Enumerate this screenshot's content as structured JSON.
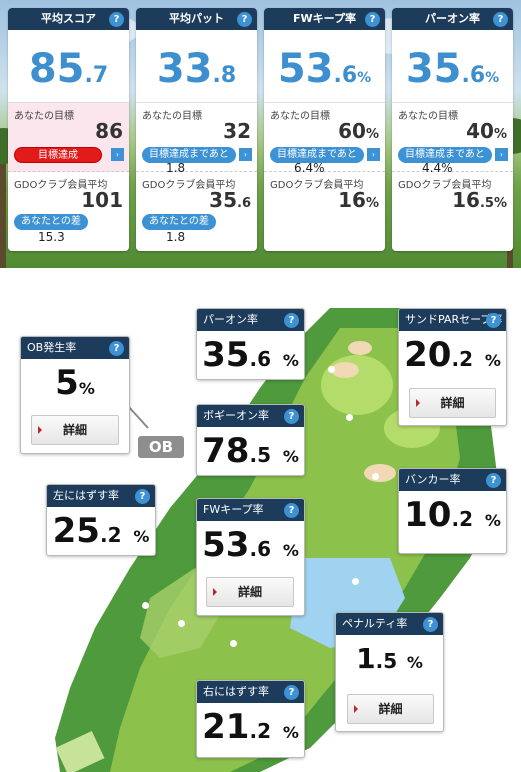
{
  "summary": [
    {
      "title": "平均スコア",
      "value_int": "85",
      "value_dec": ".7",
      "unit": "",
      "goal_label": "あなたの目標",
      "goal_int": "86",
      "goal_dec": "",
      "goal_unit": "",
      "status": "目標達成",
      "remain": "",
      "avg_label": "GDOクラブ会員平均",
      "avg_int": "101",
      "avg_dec": "",
      "avg_unit": "",
      "diff_label": "あなたとの差",
      "diff": "15.3"
    },
    {
      "title": "平均パット",
      "value_int": "33",
      "value_dec": ".8",
      "unit": "",
      "goal_label": "あなたの目標",
      "goal_int": "32",
      "goal_dec": "",
      "goal_unit": "",
      "status": "目標達成まであと",
      "remain": "1.8",
      "avg_label": "GDOクラブ会員平均",
      "avg_int": "35",
      "avg_dec": ".6",
      "avg_unit": "",
      "diff_label": "あなたとの差",
      "diff": "1.8"
    },
    {
      "title": "FWキープ率",
      "value_int": "53",
      "value_dec": ".6",
      "unit": "%",
      "goal_label": "あなたの目標",
      "goal_int": "60",
      "goal_dec": "",
      "goal_unit": "%",
      "status": "目標達成まであと",
      "remain": "6.4%",
      "avg_label": "GDOクラブ会員平均",
      "avg_int": "16",
      "avg_dec": "",
      "avg_unit": "%",
      "diff_label": "",
      "diff": ""
    },
    {
      "title": "パーオン率",
      "value_int": "35",
      "value_dec": ".6",
      "unit": "%",
      "goal_label": "あなたの目標",
      "goal_int": "40",
      "goal_dec": "",
      "goal_unit": "%",
      "status": "目標達成まであと",
      "remain": "4.4%",
      "avg_label": "GDOクラブ会員平均",
      "avg_int": "16",
      "avg_dec": ".5",
      "avg_unit": "%",
      "diff_label": "",
      "diff": ""
    }
  ],
  "help_glyph": "?",
  "arrow_glyph": "›",
  "course": {
    "ob_tag": "OB",
    "detail_label": "詳細",
    "ob": {
      "title": "OB発生率",
      "int": "5",
      "dec": "",
      "unit": "%"
    },
    "paron": {
      "title": "パーオン率",
      "int": "35",
      "dec": ".6",
      "unit": "%"
    },
    "sandpar": {
      "title": "サンドPARセーブ率",
      "int": "20",
      "dec": ".2",
      "unit": "%"
    },
    "bogey": {
      "title": "ボギーオン率",
      "int": "78",
      "dec": ".5",
      "unit": "%"
    },
    "left": {
      "title": "左にはずす率",
      "int": "25",
      "dec": ".2",
      "unit": "%"
    },
    "bunker": {
      "title": "バンカー率",
      "int": "10",
      "dec": ".2",
      "unit": "%"
    },
    "fw": {
      "title": "FWキープ率",
      "int": "53",
      "dec": ".6",
      "unit": "%"
    },
    "penalty": {
      "title": "ペナルティ率",
      "int": "1",
      "dec": ".5",
      "unit": "%"
    },
    "right": {
      "title": "右にはずす率",
      "int": "21",
      "dec": ".2",
      "unit": "%"
    }
  },
  "colors": {
    "header": "#1d3c5c",
    "accent": "#3d8fcf",
    "badge": "#3d92d4",
    "alert": "#e31a1a"
  }
}
